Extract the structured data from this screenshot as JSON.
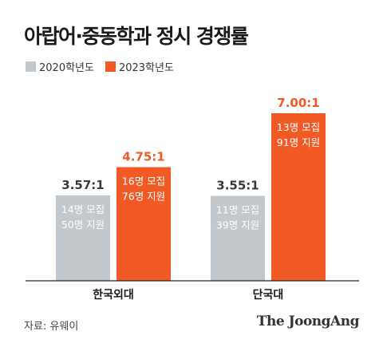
{
  "chart_data": {
    "type": "bar",
    "title": "아랍어·중동학과 정시 경쟁률",
    "categories": [
      "한국외대",
      "단국대"
    ],
    "series": [
      {
        "name": "2020학년도",
        "color": "#c3c8cc",
        "values": [
          3.57,
          3.55
        ],
        "value_labels": [
          "3.57:1",
          "3.55:1"
        ],
        "annotations": [
          [
            "14명 모집",
            "50명 지원"
          ],
          [
            "11명 모집",
            "39명 지원"
          ]
        ]
      },
      {
        "name": "2023학년도",
        "color": "#f25a25",
        "values": [
          4.75,
          7.0
        ],
        "value_labels": [
          "4.75:1",
          "7.00:1"
        ],
        "annotations": [
          [
            "16명 모집",
            "76명 지원"
          ],
          [
            "13명 모집",
            "91명 지원"
          ]
        ]
      }
    ],
    "ylim": [
      0,
      7.0
    ],
    "grid": false,
    "legend_position": "top-left"
  },
  "footer": {
    "source": "자료: 유웨이",
    "brand": "The JoongAng"
  },
  "colors": {
    "value_text_gray": "#3a3a3a",
    "value_text_orange": "#f25a25",
    "annotation_text": "#ffffff",
    "baseline": "#222222"
  }
}
